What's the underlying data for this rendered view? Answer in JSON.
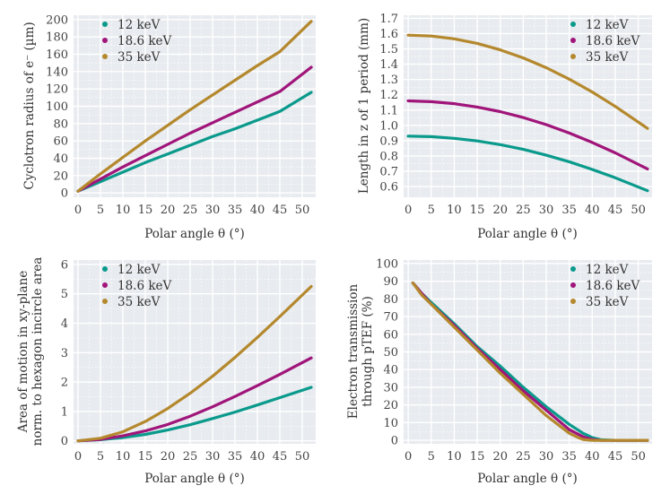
{
  "colors": {
    "12keV": "#0a9a8c",
    "18.6keV": "#a0157a",
    "35keV": "#b4882d",
    "panel_bg": "#e8ebef",
    "grid": "#ffffff"
  },
  "chart_data": [
    {
      "type": "line",
      "id": "cyclotron",
      "xlabel": "Polar angle θ (°)",
      "ylabel": "Cyclotron radius of e⁻ (µm)",
      "xlim": [
        -1,
        53
      ],
      "ylim": [
        -5,
        205
      ],
      "xticks": [
        0,
        5,
        10,
        15,
        20,
        25,
        30,
        35,
        40,
        45,
        50
      ],
      "yticks": [
        0,
        20,
        40,
        60,
        80,
        100,
        120,
        140,
        160,
        180,
        200
      ],
      "legend": "top-left",
      "series": [
        {
          "name": "12 keV",
          "x": [
            0,
            5,
            10,
            15,
            20,
            25,
            30,
            35,
            40,
            45,
            52
          ],
          "y": [
            2,
            13,
            24,
            35,
            45,
            55,
            65,
            74,
            84,
            94,
            116
          ]
        },
        {
          "name": "18.6 keV",
          "x": [
            0,
            5,
            10,
            15,
            20,
            25,
            30,
            35,
            40,
            45,
            52
          ],
          "y": [
            2,
            16,
            30,
            43,
            56,
            69,
            81,
            93,
            105,
            117,
            145
          ]
        },
        {
          "name": "35 keV",
          "x": [
            0,
            5,
            10,
            15,
            20,
            25,
            30,
            35,
            40,
            45,
            52
          ],
          "y": [
            2,
            22,
            41,
            60,
            78,
            96,
            113,
            130,
            147,
            163,
            198
          ]
        }
      ]
    },
    {
      "type": "line",
      "id": "length",
      "xlabel": "Polar angle θ (°)",
      "ylabel": "Length in z of 1 period (mm)",
      "xlim": [
        -1,
        53
      ],
      "ylim": [
        0.53,
        1.72
      ],
      "xticks": [
        0,
        5,
        10,
        15,
        20,
        25,
        30,
        35,
        40,
        45,
        50
      ],
      "yticks": [
        0.6,
        0.7,
        0.8,
        0.9,
        1.0,
        1.1,
        1.2,
        1.3,
        1.4,
        1.5,
        1.6,
        1.7
      ],
      "ytick_labels": [
        "0.6",
        "0.7",
        "0.8",
        "0.9",
        "1.0",
        "1.1",
        "1.2",
        "1.3",
        "1.4",
        "1.5",
        "1.6",
        "1.7"
      ],
      "legend": "top-right",
      "series": [
        {
          "name": "12 keV",
          "x": [
            0,
            5,
            10,
            15,
            20,
            25,
            30,
            35,
            40,
            45,
            52
          ],
          "y": [
            0.93,
            0.926,
            0.915,
            0.898,
            0.874,
            0.843,
            0.805,
            0.762,
            0.712,
            0.657,
            0.573
          ]
        },
        {
          "name": "18.6 keV",
          "x": [
            0,
            5,
            10,
            15,
            20,
            25,
            30,
            35,
            40,
            45,
            52
          ],
          "y": [
            1.16,
            1.155,
            1.142,
            1.12,
            1.09,
            1.051,
            1.005,
            0.95,
            0.888,
            0.82,
            0.715
          ]
        },
        {
          "name": "35 keV",
          "x": [
            0,
            5,
            10,
            15,
            20,
            25,
            30,
            35,
            40,
            45,
            52
          ],
          "y": [
            1.59,
            1.584,
            1.566,
            1.536,
            1.494,
            1.441,
            1.377,
            1.302,
            1.218,
            1.124,
            0.98
          ]
        }
      ]
    },
    {
      "type": "line",
      "id": "area",
      "xlabel": "Polar angle θ (°)",
      "ylabel": "Area of motion in xy-plane norm. to hexagon incircle area",
      "ylabel_lines": [
        "Area of motion in xy-plane",
        "norm. to hexagon incircle area"
      ],
      "xlim": [
        -1,
        53
      ],
      "ylim": [
        -0.1,
        6.15
      ],
      "xticks": [
        0,
        5,
        10,
        15,
        20,
        25,
        30,
        35,
        40,
        45,
        50
      ],
      "yticks": [
        0,
        1,
        2,
        3,
        4,
        5,
        6
      ],
      "legend": "top-left",
      "series": [
        {
          "name": "12 keV",
          "x": [
            0,
            5,
            10,
            15,
            20,
            25,
            30,
            35,
            40,
            45,
            52
          ],
          "y": [
            0,
            0.04,
            0.11,
            0.22,
            0.37,
            0.55,
            0.76,
            0.98,
            1.22,
            1.47,
            1.82
          ]
        },
        {
          "name": "18.6 keV",
          "x": [
            0,
            5,
            10,
            15,
            20,
            25,
            30,
            35,
            40,
            45,
            52
          ],
          "y": [
            0,
            0.05,
            0.17,
            0.34,
            0.56,
            0.84,
            1.16,
            1.51,
            1.88,
            2.26,
            2.82
          ]
        },
        {
          "name": "35 keV",
          "x": [
            0,
            5,
            10,
            15,
            20,
            25,
            30,
            35,
            40,
            45,
            52
          ],
          "y": [
            0,
            0.09,
            0.31,
            0.66,
            1.1,
            1.62,
            2.2,
            2.84,
            3.52,
            4.23,
            5.25
          ]
        }
      ]
    },
    {
      "type": "line",
      "id": "transmission",
      "xlabel": "Polar angle θ (°)",
      "ylabel": "Electron transmission through pTEF (%)",
      "ylabel_lines": [
        "Electron transmission",
        "through pTEF (%)"
      ],
      "xlim": [
        -1,
        53
      ],
      "ylim": [
        -2,
        102
      ],
      "xticks": [
        0,
        5,
        10,
        15,
        20,
        25,
        30,
        35,
        40,
        45,
        50
      ],
      "yticks": [
        0,
        10,
        20,
        30,
        40,
        50,
        60,
        70,
        80,
        90,
        100
      ],
      "legend": "top-right",
      "series": [
        {
          "name": "12 keV",
          "x": [
            1,
            3,
            5,
            10,
            15,
            20,
            25,
            30,
            35,
            38,
            40,
            42,
            45,
            52
          ],
          "y": [
            89,
            83,
            78,
            66,
            53,
            42,
            30,
            19,
            9,
            4,
            1.5,
            0.3,
            0,
            0
          ]
        },
        {
          "name": "18.6 keV",
          "x": [
            1,
            3,
            5,
            10,
            15,
            20,
            25,
            30,
            35,
            38,
            40,
            42,
            45,
            52
          ],
          "y": [
            89,
            83,
            77,
            65,
            52,
            40,
            28,
            17,
            6,
            2,
            0.5,
            0,
            0,
            0
          ]
        },
        {
          "name": "35 keV",
          "x": [
            1,
            3,
            5,
            10,
            15,
            20,
            25,
            30,
            35,
            37,
            38,
            40,
            45,
            52
          ],
          "y": [
            89,
            82,
            77,
            64,
            51,
            38,
            26,
            14,
            4,
            1.5,
            0.5,
            0,
            0,
            0
          ]
        }
      ]
    }
  ]
}
